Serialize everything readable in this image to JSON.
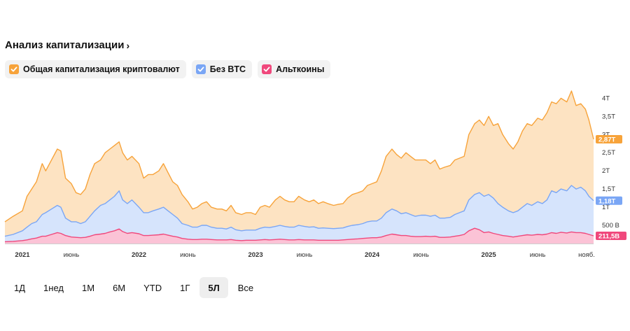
{
  "header": {
    "title": "Анализ капитализации",
    "chevron": "›"
  },
  "legend": [
    {
      "label": "Общая капитализация криптовалют",
      "color": "#f7a33a"
    },
    {
      "label": "Без BTC",
      "color": "#7aa6f5"
    },
    {
      "label": "Альткоины",
      "color": "#f0487c"
    }
  ],
  "ranges": {
    "items": [
      "1Д",
      "1нед",
      "1М",
      "6М",
      "YTD",
      "1Г",
      "5Л",
      "Все"
    ],
    "active": "5Л"
  },
  "chart_data": {
    "type": "area",
    "title": "Анализ капитализации",
    "y_unit": "USD",
    "ylim": [
      0,
      4200000000000
    ],
    "y_ticks": [
      {
        "value": 500000000000,
        "label": "500 B"
      },
      {
        "value": 1000000000000,
        "label": "1T"
      },
      {
        "value": 1500000000000,
        "label": "1,5T"
      },
      {
        "value": 2000000000000,
        "label": "2T"
      },
      {
        "value": 2500000000000,
        "label": "2,5T"
      },
      {
        "value": 3000000000000,
        "label": "3T"
      },
      {
        "value": 3500000000000,
        "label": "3,5T"
      },
      {
        "value": 4000000000000,
        "label": "4T"
      }
    ],
    "x_range": [
      2020.85,
      2025.9
    ],
    "x_ticks": [
      {
        "value": 2021.0,
        "label": "2021",
        "year": true
      },
      {
        "value": 2021.42,
        "label": "июнь",
        "year": false
      },
      {
        "value": 2022.0,
        "label": "2022",
        "year": true
      },
      {
        "value": 2022.42,
        "label": "июнь",
        "year": false
      },
      {
        "value": 2023.0,
        "label": "2023",
        "year": true
      },
      {
        "value": 2023.42,
        "label": "июнь",
        "year": false
      },
      {
        "value": 2024.0,
        "label": "2024",
        "year": true
      },
      {
        "value": 2024.42,
        "label": "июнь",
        "year": false
      },
      {
        "value": 2025.0,
        "label": "2025",
        "year": true
      },
      {
        "value": 2025.42,
        "label": "июнь",
        "year": false
      },
      {
        "value": 2025.84,
        "label": "нояб.",
        "year": false
      }
    ],
    "current_labels": [
      {
        "series": "Общая капитализация криптовалют",
        "text": "2,87T",
        "value": 2870000000000
      },
      {
        "series": "Без BTC",
        "text": "1,18T",
        "value": 1180000000000
      },
      {
        "series": "Альткоины",
        "text": "211,5B",
        "value": 211500000000
      }
    ],
    "x": [
      2020.85,
      2020.92,
      2021.0,
      2021.04,
      2021.08,
      2021.12,
      2021.17,
      2021.2,
      2021.25,
      2021.3,
      2021.33,
      2021.37,
      2021.42,
      2021.46,
      2021.5,
      2021.54,
      2021.58,
      2021.62,
      2021.67,
      2021.71,
      2021.75,
      2021.79,
      2021.83,
      2021.86,
      2021.9,
      2021.94,
      2022.0,
      2022.04,
      2022.08,
      2022.12,
      2022.17,
      2022.21,
      2022.25,
      2022.29,
      2022.33,
      2022.37,
      2022.42,
      2022.46,
      2022.5,
      2022.54,
      2022.58,
      2022.62,
      2022.67,
      2022.71,
      2022.75,
      2022.79,
      2022.83,
      2022.88,
      2022.92,
      2022.96,
      2023.0,
      2023.04,
      2023.08,
      2023.12,
      2023.17,
      2023.21,
      2023.25,
      2023.29,
      2023.33,
      2023.37,
      2023.42,
      2023.46,
      2023.5,
      2023.54,
      2023.58,
      2023.62,
      2023.67,
      2023.71,
      2023.75,
      2023.79,
      2023.83,
      2023.88,
      2023.92,
      2023.96,
      2024.0,
      2024.04,
      2024.08,
      2024.12,
      2024.17,
      2024.21,
      2024.25,
      2024.29,
      2024.33,
      2024.37,
      2024.42,
      2024.46,
      2024.5,
      2024.54,
      2024.58,
      2024.62,
      2024.67,
      2024.71,
      2024.75,
      2024.79,
      2024.83,
      2024.88,
      2024.92,
      2024.96,
      2025.0,
      2025.04,
      2025.08,
      2025.12,
      2025.17,
      2025.21,
      2025.25,
      2025.29,
      2025.33,
      2025.37,
      2025.42,
      2025.46,
      2025.5,
      2025.54,
      2025.58,
      2025.62,
      2025.67,
      2025.71,
      2025.75,
      2025.79,
      2025.83,
      2025.86,
      2025.9
    ],
    "series": [
      {
        "name": "Общая капитализация криптовалют",
        "color": "#f7a33a",
        "values": [
          0.6,
          0.75,
          0.9,
          1.3,
          1.5,
          1.7,
          2.2,
          2.0,
          2.3,
          2.6,
          2.55,
          1.8,
          1.65,
          1.4,
          1.35,
          1.5,
          1.9,
          2.2,
          2.3,
          2.5,
          2.6,
          2.7,
          2.8,
          2.5,
          2.3,
          2.4,
          2.2,
          1.8,
          1.9,
          1.9,
          2.0,
          2.2,
          1.95,
          1.7,
          1.6,
          1.35,
          1.15,
          0.95,
          1.0,
          1.1,
          1.15,
          1.0,
          0.95,
          0.95,
          0.9,
          1.05,
          0.85,
          0.8,
          0.85,
          0.85,
          0.8,
          1.0,
          1.05,
          1.0,
          1.2,
          1.3,
          1.2,
          1.15,
          1.15,
          1.3,
          1.2,
          1.15,
          1.2,
          1.1,
          1.15,
          1.1,
          1.05,
          1.08,
          1.1,
          1.25,
          1.35,
          1.4,
          1.45,
          1.6,
          1.65,
          1.7,
          2.0,
          2.4,
          2.6,
          2.45,
          2.35,
          2.5,
          2.4,
          2.3,
          2.3,
          2.3,
          2.2,
          2.3,
          2.05,
          2.1,
          2.15,
          2.3,
          2.35,
          2.4,
          3.0,
          3.3,
          3.4,
          3.25,
          3.5,
          3.25,
          3.3,
          3.0,
          2.75,
          2.6,
          2.8,
          3.1,
          3.3,
          3.25,
          3.45,
          3.4,
          3.6,
          3.9,
          3.85,
          4.0,
          3.9,
          4.2,
          3.8,
          3.85,
          3.7,
          3.4,
          2.87
        ]
      },
      {
        "name": "Без BTC",
        "color": "#7aa6f5",
        "values": [
          0.2,
          0.25,
          0.35,
          0.45,
          0.55,
          0.6,
          0.8,
          0.85,
          0.95,
          1.05,
          1.0,
          0.7,
          0.6,
          0.6,
          0.55,
          0.6,
          0.75,
          0.9,
          1.05,
          1.1,
          1.2,
          1.3,
          1.45,
          1.2,
          1.1,
          1.2,
          1.0,
          0.85,
          0.85,
          0.9,
          0.95,
          1.0,
          0.9,
          0.8,
          0.7,
          0.55,
          0.5,
          0.45,
          0.45,
          0.5,
          0.5,
          0.45,
          0.42,
          0.42,
          0.4,
          0.45,
          0.38,
          0.35,
          0.37,
          0.37,
          0.37,
          0.42,
          0.45,
          0.44,
          0.47,
          0.5,
          0.47,
          0.45,
          0.45,
          0.5,
          0.47,
          0.45,
          0.46,
          0.42,
          0.43,
          0.42,
          0.41,
          0.42,
          0.43,
          0.47,
          0.5,
          0.52,
          0.55,
          0.6,
          0.62,
          0.62,
          0.7,
          0.85,
          0.95,
          0.9,
          0.82,
          0.85,
          0.8,
          0.75,
          0.78,
          0.78,
          0.75,
          0.78,
          0.7,
          0.7,
          0.72,
          0.8,
          0.85,
          0.9,
          1.2,
          1.35,
          1.4,
          1.3,
          1.35,
          1.25,
          1.1,
          1.0,
          0.9,
          0.85,
          0.9,
          1.0,
          1.1,
          1.05,
          1.15,
          1.1,
          1.2,
          1.45,
          1.4,
          1.5,
          1.45,
          1.6,
          1.5,
          1.55,
          1.45,
          1.3,
          1.18
        ]
      },
      {
        "name": "Альткоины",
        "color": "#f0487c",
        "values": [
          0.05,
          0.06,
          0.08,
          0.1,
          0.13,
          0.15,
          0.2,
          0.2,
          0.25,
          0.3,
          0.28,
          0.22,
          0.18,
          0.17,
          0.16,
          0.17,
          0.2,
          0.24,
          0.26,
          0.28,
          0.32,
          0.35,
          0.4,
          0.33,
          0.28,
          0.3,
          0.27,
          0.22,
          0.22,
          0.23,
          0.24,
          0.26,
          0.23,
          0.2,
          0.18,
          0.14,
          0.12,
          0.11,
          0.11,
          0.12,
          0.12,
          0.11,
          0.1,
          0.1,
          0.1,
          0.11,
          0.09,
          0.08,
          0.09,
          0.09,
          0.09,
          0.1,
          0.11,
          0.1,
          0.11,
          0.12,
          0.11,
          0.1,
          0.1,
          0.11,
          0.1,
          0.1,
          0.1,
          0.09,
          0.09,
          0.09,
          0.09,
          0.09,
          0.1,
          0.11,
          0.12,
          0.13,
          0.14,
          0.15,
          0.16,
          0.16,
          0.18,
          0.22,
          0.26,
          0.24,
          0.22,
          0.22,
          0.2,
          0.19,
          0.19,
          0.2,
          0.19,
          0.2,
          0.17,
          0.17,
          0.18,
          0.2,
          0.22,
          0.25,
          0.35,
          0.42,
          0.38,
          0.3,
          0.32,
          0.28,
          0.25,
          0.22,
          0.2,
          0.18,
          0.2,
          0.22,
          0.24,
          0.23,
          0.25,
          0.24,
          0.26,
          0.3,
          0.28,
          0.31,
          0.29,
          0.32,
          0.3,
          0.3,
          0.28,
          0.25,
          0.2115
        ]
      }
    ]
  }
}
